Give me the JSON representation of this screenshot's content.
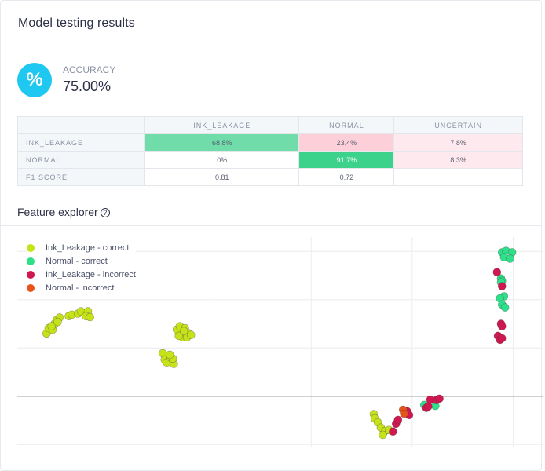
{
  "header": {
    "title": "Model testing results"
  },
  "accuracy": {
    "icon": "percent-icon",
    "icon_glyph": "%",
    "label": "ACCURACY",
    "value": "75.00%",
    "color": "#1ec8f0"
  },
  "matrix": {
    "columns": [
      "INK_LEAKAGE",
      "NORMAL",
      "UNCERTAIN"
    ],
    "rows": [
      {
        "label": "INK_LEAKAGE",
        "cells": [
          "68.8%",
          "23.4%",
          "7.8%"
        ],
        "colors": [
          "#6fdcaa",
          "#fdd0d9",
          "#feeaee"
        ]
      },
      {
        "label": "NORMAL",
        "cells": [
          "0%",
          "91.7%",
          "8.3%"
        ],
        "colors": [
          "#ffffff",
          "#3dd28c",
          "#feeaee"
        ]
      },
      {
        "label": "F1 SCORE",
        "cells": [
          "0.81",
          "0.72",
          ""
        ],
        "colors": [
          "#ffffff",
          "#ffffff",
          "#ffffff"
        ]
      }
    ]
  },
  "feature_explorer": {
    "title": "Feature explorer",
    "help_icon": "question-circle-icon"
  },
  "chart_data": {
    "type": "scatter",
    "xlim": [
      -19.1,
      33.0
    ],
    "ylim": [
      -10.6,
      33.3
    ],
    "grid": true,
    "legend_position": "top-left",
    "x_gridlines": [
      0,
      10,
      20,
      30
    ],
    "y_gridlines": [
      -10,
      10,
      20,
      30
    ],
    "zero_line": 0,
    "series": [
      {
        "name": "Ink_Leakage - correct",
        "color": "#c6e31a",
        "points": [
          [
            -16.2,
            13.0
          ],
          [
            -16.0,
            14.1
          ],
          [
            -15.6,
            13.8
          ],
          [
            -15.4,
            15.0
          ],
          [
            -15.2,
            15.8
          ],
          [
            -14.9,
            16.3
          ],
          [
            -14.0,
            16.6
          ],
          [
            -13.7,
            16.9
          ],
          [
            -13.1,
            17.1
          ],
          [
            -12.8,
            17.6
          ],
          [
            -12.1,
            17.6
          ],
          [
            -12.3,
            16.6
          ],
          [
            -11.9,
            16.4
          ],
          [
            -15.7,
            14.5
          ],
          [
            -15.1,
            15.4
          ],
          [
            -3.3,
            13.8
          ],
          [
            -3.0,
            14.5
          ],
          [
            -2.5,
            14.1
          ],
          [
            -2.1,
            13.0
          ],
          [
            -2.7,
            12.2
          ],
          [
            -3.1,
            12.5
          ],
          [
            -2.3,
            12.2
          ],
          [
            -1.9,
            12.7
          ],
          [
            -2.6,
            13.5
          ],
          [
            -4.7,
            8.9
          ],
          [
            -4.5,
            7.6
          ],
          [
            -4.3,
            7.0
          ],
          [
            -3.9,
            8.0
          ],
          [
            -3.6,
            6.7
          ],
          [
            -3.7,
            7.8
          ],
          [
            -4.0,
            8.6
          ],
          [
            16.2,
            -3.7
          ],
          [
            16.3,
            -4.6
          ],
          [
            16.6,
            -5.4
          ],
          [
            16.9,
            -6.5
          ],
          [
            17.3,
            -7.2
          ],
          [
            17.7,
            -7.0
          ],
          [
            17.1,
            -8.0
          ]
        ]
      },
      {
        "name": "Normal - correct",
        "color": "#2fe08a",
        "points": [
          [
            28.9,
            29.8
          ],
          [
            29.3,
            30.1
          ],
          [
            29.9,
            29.8
          ],
          [
            29.1,
            28.8
          ],
          [
            29.7,
            28.5
          ],
          [
            28.8,
            24.4
          ],
          [
            28.9,
            23.9
          ],
          [
            29.1,
            20.7
          ],
          [
            28.7,
            20.3
          ],
          [
            28.9,
            19.0
          ],
          [
            29.2,
            18.4
          ],
          [
            28.8,
            23.6
          ],
          [
            22.3,
            -2.0
          ],
          [
            21.2,
            -1.8
          ]
        ]
      },
      {
        "name": "Ink_Leakage - incorrect",
        "color": "#d0174f",
        "points": [
          [
            28.4,
            25.7
          ],
          [
            28.9,
            22.8
          ],
          [
            28.8,
            15.0
          ],
          [
            28.9,
            14.5
          ],
          [
            28.5,
            12.5
          ],
          [
            28.7,
            11.7
          ],
          [
            28.9,
            12.0
          ],
          [
            18.1,
            -7.3
          ],
          [
            18.4,
            -5.7
          ],
          [
            18.6,
            -4.9
          ],
          [
            19.5,
            -3.1
          ],
          [
            19.7,
            -3.9
          ],
          [
            21.4,
            -2.4
          ],
          [
            21.6,
            -2.1
          ],
          [
            21.8,
            -0.7
          ],
          [
            22.4,
            -0.8
          ],
          [
            22.7,
            -0.5
          ]
        ]
      },
      {
        "name": "Normal - incorrect",
        "color": "#e8531a",
        "points": [
          [
            19.1,
            -2.8
          ],
          [
            19.2,
            -3.6
          ]
        ]
      }
    ]
  }
}
